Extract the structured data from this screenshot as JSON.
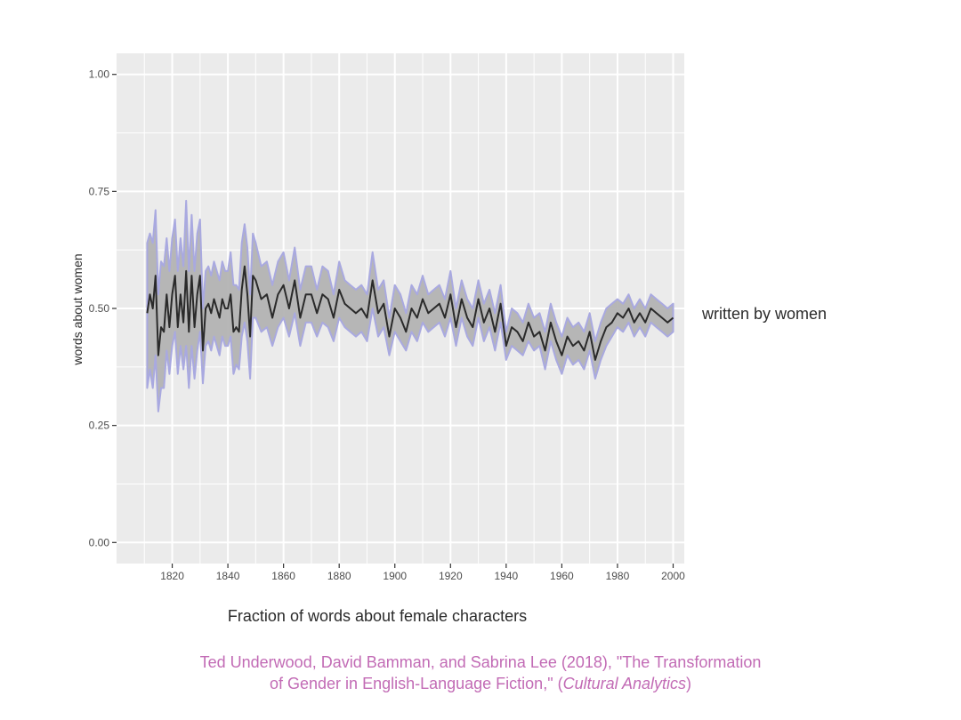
{
  "chart_data": {
    "type": "line",
    "title": "",
    "xlabel": "Fraction of words about female characters",
    "ylabel": "words about women",
    "series_label": "written by women",
    "xlim": [
      1800,
      2004
    ],
    "ylim": [
      -0.045,
      1.045
    ],
    "x_ticks": [
      1820,
      1840,
      1860,
      1880,
      1900,
      1920,
      1940,
      1960,
      1980,
      2000
    ],
    "x_tick_labels": [
      "1820",
      "1840",
      "1860",
      "1880",
      "1900",
      "1920",
      "1940",
      "1960",
      "1980",
      "2000"
    ],
    "y_ticks": [
      0.0,
      0.25,
      0.5,
      0.75,
      1.0
    ],
    "y_tick_labels": [
      "0.00",
      "0.25",
      "0.50",
      "0.75",
      "1.00"
    ],
    "grid": true,
    "colors": {
      "panel": "#ebebeb",
      "grid": "#ffffff",
      "line": "#2a2a2a",
      "ribbon_fill": "#b3b3b3",
      "ribbon_edge": "#a9a9e0",
      "citation": "#c26bb5"
    },
    "series": [
      {
        "name": "written by women",
        "x": [
          1811,
          1812,
          1813,
          1814,
          1815,
          1816,
          1817,
          1818,
          1819,
          1820,
          1821,
          1822,
          1823,
          1824,
          1825,
          1826,
          1827,
          1828,
          1829,
          1830,
          1831,
          1832,
          1833,
          1834,
          1835,
          1836,
          1837,
          1838,
          1839,
          1840,
          1841,
          1842,
          1843,
          1844,
          1845,
          1846,
          1847,
          1848,
          1849,
          1850,
          1852,
          1854,
          1856,
          1858,
          1860,
          1862,
          1864,
          1866,
          1868,
          1870,
          1872,
          1874,
          1876,
          1878,
          1880,
          1882,
          1884,
          1886,
          1888,
          1890,
          1892,
          1894,
          1896,
          1898,
          1900,
          1902,
          1904,
          1906,
          1908,
          1910,
          1912,
          1914,
          1916,
          1918,
          1920,
          1922,
          1924,
          1926,
          1928,
          1930,
          1932,
          1934,
          1936,
          1938,
          1940,
          1942,
          1944,
          1946,
          1948,
          1950,
          1952,
          1954,
          1956,
          1958,
          1960,
          1962,
          1964,
          1966,
          1968,
          1970,
          1972,
          1974,
          1976,
          1978,
          1980,
          1982,
          1984,
          1986,
          1988,
          1990,
          1992,
          1994,
          1996,
          1998,
          2000
        ],
        "values": [
          0.49,
          0.53,
          0.5,
          0.57,
          0.4,
          0.46,
          0.45,
          0.53,
          0.46,
          0.53,
          0.57,
          0.46,
          0.53,
          0.47,
          0.58,
          0.45,
          0.57,
          0.46,
          0.53,
          0.57,
          0.41,
          0.5,
          0.51,
          0.49,
          0.52,
          0.5,
          0.48,
          0.52,
          0.5,
          0.5,
          0.53,
          0.45,
          0.46,
          0.45,
          0.54,
          0.59,
          0.53,
          0.44,
          0.57,
          0.56,
          0.52,
          0.53,
          0.48,
          0.53,
          0.55,
          0.5,
          0.56,
          0.48,
          0.53,
          0.53,
          0.49,
          0.53,
          0.52,
          0.48,
          0.54,
          0.51,
          0.5,
          0.49,
          0.5,
          0.48,
          0.56,
          0.49,
          0.51,
          0.44,
          0.5,
          0.48,
          0.45,
          0.5,
          0.48,
          0.52,
          0.49,
          0.5,
          0.51,
          0.48,
          0.53,
          0.46,
          0.52,
          0.48,
          0.46,
          0.52,
          0.47,
          0.5,
          0.45,
          0.51,
          0.42,
          0.46,
          0.45,
          0.43,
          0.47,
          0.44,
          0.45,
          0.41,
          0.47,
          0.43,
          0.4,
          0.44,
          0.42,
          0.43,
          0.41,
          0.45,
          0.39,
          0.43,
          0.46,
          0.47,
          0.49,
          0.48,
          0.5,
          0.47,
          0.49,
          0.47,
          0.5,
          0.49,
          0.48,
          0.47,
          0.48
        ],
        "lower": [
          0.33,
          0.37,
          0.33,
          0.4,
          0.28,
          0.33,
          0.33,
          0.41,
          0.36,
          0.42,
          0.45,
          0.36,
          0.42,
          0.37,
          0.42,
          0.33,
          0.42,
          0.35,
          0.41,
          0.45,
          0.34,
          0.42,
          0.43,
          0.41,
          0.44,
          0.42,
          0.4,
          0.44,
          0.42,
          0.42,
          0.44,
          0.36,
          0.38,
          0.37,
          0.44,
          0.47,
          0.43,
          0.35,
          0.48,
          0.48,
          0.45,
          0.46,
          0.42,
          0.46,
          0.48,
          0.44,
          0.49,
          0.42,
          0.47,
          0.47,
          0.44,
          0.47,
          0.46,
          0.43,
          0.48,
          0.46,
          0.45,
          0.44,
          0.45,
          0.43,
          0.5,
          0.44,
          0.46,
          0.4,
          0.45,
          0.43,
          0.41,
          0.45,
          0.43,
          0.47,
          0.45,
          0.46,
          0.47,
          0.44,
          0.48,
          0.42,
          0.48,
          0.44,
          0.42,
          0.48,
          0.43,
          0.46,
          0.41,
          0.47,
          0.39,
          0.42,
          0.41,
          0.4,
          0.43,
          0.41,
          0.42,
          0.37,
          0.43,
          0.39,
          0.36,
          0.4,
          0.38,
          0.39,
          0.37,
          0.41,
          0.35,
          0.39,
          0.42,
          0.44,
          0.46,
          0.45,
          0.47,
          0.44,
          0.46,
          0.44,
          0.47,
          0.46,
          0.45,
          0.44,
          0.45
        ],
        "upper": [
          0.64,
          0.66,
          0.64,
          0.71,
          0.53,
          0.6,
          0.59,
          0.65,
          0.58,
          0.65,
          0.69,
          0.58,
          0.65,
          0.59,
          0.73,
          0.58,
          0.7,
          0.58,
          0.66,
          0.69,
          0.5,
          0.58,
          0.59,
          0.57,
          0.6,
          0.58,
          0.56,
          0.6,
          0.58,
          0.58,
          0.62,
          0.55,
          0.55,
          0.54,
          0.64,
          0.68,
          0.63,
          0.53,
          0.66,
          0.64,
          0.59,
          0.6,
          0.55,
          0.6,
          0.62,
          0.56,
          0.63,
          0.54,
          0.59,
          0.59,
          0.54,
          0.59,
          0.58,
          0.53,
          0.6,
          0.56,
          0.55,
          0.54,
          0.55,
          0.53,
          0.62,
          0.54,
          0.56,
          0.48,
          0.55,
          0.53,
          0.49,
          0.55,
          0.53,
          0.57,
          0.53,
          0.54,
          0.55,
          0.52,
          0.58,
          0.5,
          0.56,
          0.52,
          0.5,
          0.56,
          0.51,
          0.54,
          0.49,
          0.55,
          0.45,
          0.5,
          0.49,
          0.47,
          0.51,
          0.48,
          0.49,
          0.45,
          0.51,
          0.47,
          0.44,
          0.48,
          0.46,
          0.47,
          0.45,
          0.49,
          0.43,
          0.47,
          0.5,
          0.51,
          0.52,
          0.51,
          0.53,
          0.5,
          0.52,
          0.5,
          0.53,
          0.52,
          0.51,
          0.5,
          0.51
        ]
      }
    ]
  },
  "citation": {
    "line1": "Ted Underwood, David Bamman, and Sabrina Lee (2018), \"The Transformation",
    "line2_prefix": "of Gender in English-Language Fiction,\"  (",
    "journal": "Cultural Analytics",
    "line2_suffix": ")"
  }
}
